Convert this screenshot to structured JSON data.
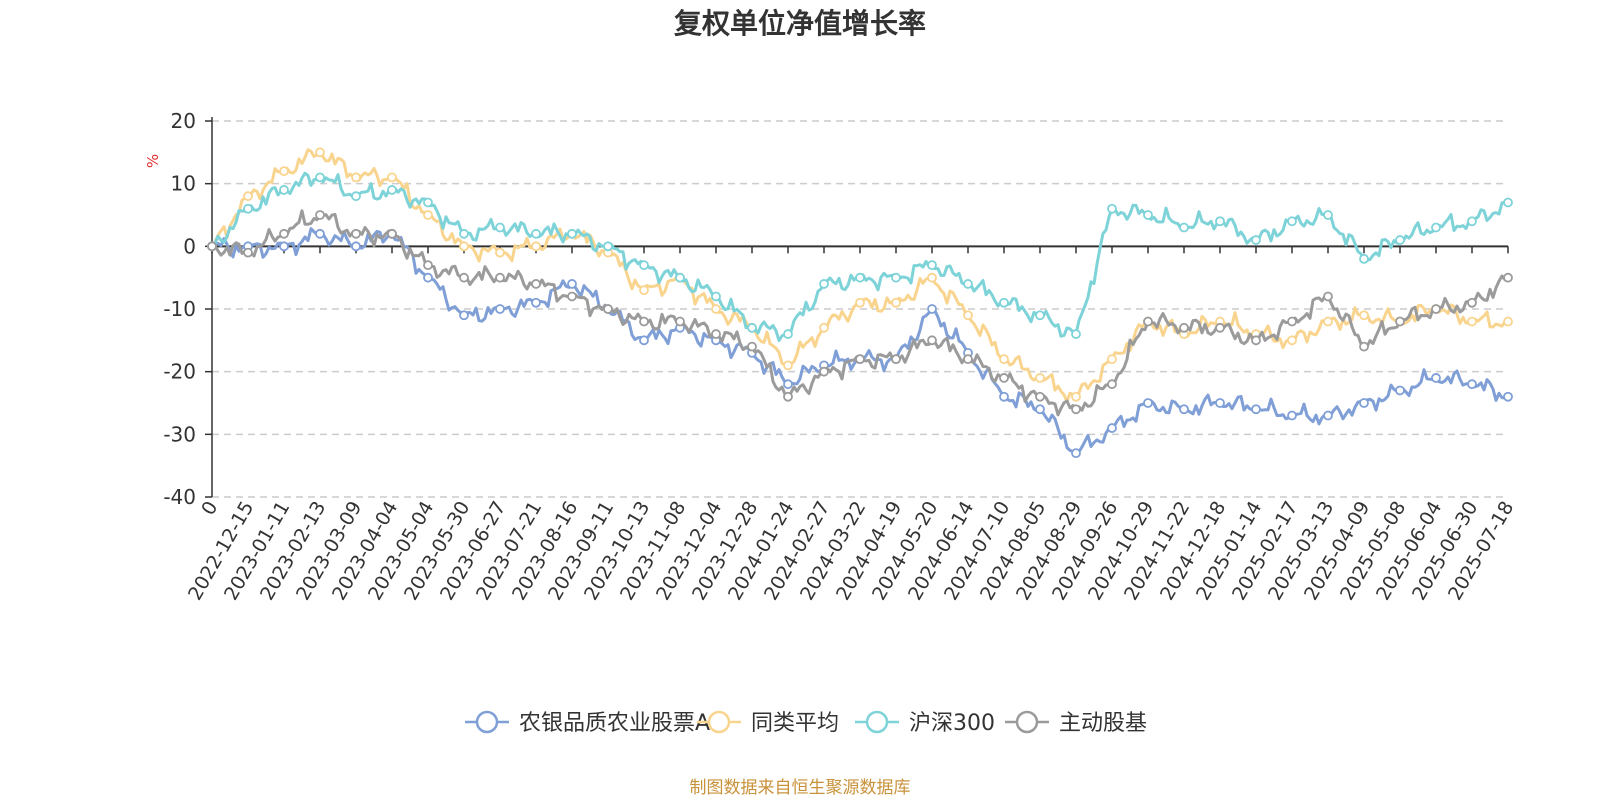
{
  "chart_data": {
    "type": "line",
    "title": "复权单位净值增长率",
    "ylabel": "%",
    "ylim": [
      -40,
      20
    ],
    "yticks": [
      20,
      10,
      0,
      -10,
      -20,
      -30,
      -40
    ],
    "grid": true,
    "legend_position": "bottom",
    "x": [
      "0",
      "2022-12-15",
      "2023-01-11",
      "2023-02-13",
      "2023-03-09",
      "2023-04-04",
      "2023-05-04",
      "2023-05-30",
      "2023-06-27",
      "2023-07-21",
      "2023-08-16",
      "2023-09-11",
      "2023-10-13",
      "2023-11-08",
      "2023-12-04",
      "2023-12-28",
      "2024-01-24",
      "2024-02-27",
      "2024-03-22",
      "2024-04-19",
      "2024-05-20",
      "2024-06-14",
      "2024-07-10",
      "2024-08-05",
      "2024-08-29",
      "2024-09-26",
      "2024-10-29",
      "2024-11-22",
      "2024-12-18",
      "2025-01-14",
      "2025-02-17",
      "2025-03-13",
      "2025-04-09",
      "2025-05-08",
      "2025-06-04",
      "2025-06-30",
      "2025-07-18"
    ],
    "series": [
      {
        "name": "农银品质农业股票A",
        "color": "#7f9fd6",
        "values": [
          0,
          0,
          0,
          2,
          0,
          2,
          -5,
          -11,
          -10,
          -9,
          -6,
          -10,
          -15,
          -13,
          -15,
          -17,
          -22,
          -19,
          -18,
          -18,
          -10,
          -17,
          -24,
          -26,
          -33,
          -29,
          -25,
          -26,
          -25,
          -26,
          -27,
          -27,
          -25,
          -23,
          -21,
          -22,
          -24
        ]
      },
      {
        "name": "同类平均",
        "color": "#f9d48e",
        "values": [
          0,
          8,
          12,
          15,
          11,
          11,
          5,
          0,
          -1,
          0,
          2,
          -1,
          -7,
          -5,
          -10,
          -13,
          -19,
          -13,
          -9,
          -9,
          -5,
          -11,
          -18,
          -21,
          -24,
          -18,
          -12,
          -14,
          -12,
          -14,
          -15,
          -12,
          -11,
          -12,
          -10,
          -12,
          -12
        ]
      },
      {
        "name": "沪深300",
        "color": "#7dd3d8",
        "values": [
          0,
          6,
          9,
          11,
          8,
          9,
          7,
          2,
          3,
          2,
          2,
          0,
          -3,
          -5,
          -8,
          -13,
          -14,
          -6,
          -5,
          -5,
          -3,
          -6,
          -9,
          -11,
          -14,
          6,
          5,
          3,
          4,
          1,
          4,
          5,
          -2,
          1,
          3,
          4,
          7
        ]
      },
      {
        "name": "主动股基",
        "color": "#9b9b9b",
        "values": [
          0,
          -1,
          2,
          5,
          2,
          2,
          -3,
          -5,
          -5,
          -6,
          -8,
          -10,
          -12,
          -12,
          -14,
          -16,
          -24,
          -20,
          -18,
          -18,
          -15,
          -18,
          -21,
          -24,
          -26,
          -22,
          -12,
          -13,
          -13,
          -15,
          -12,
          -8,
          -16,
          -12,
          -10,
          -9,
          -5
        ]
      }
    ]
  },
  "source_note": {
    "text": "制图数据来自恒生聚源数据库",
    "color": "#c8923a"
  },
  "unit_color": "#e03030"
}
